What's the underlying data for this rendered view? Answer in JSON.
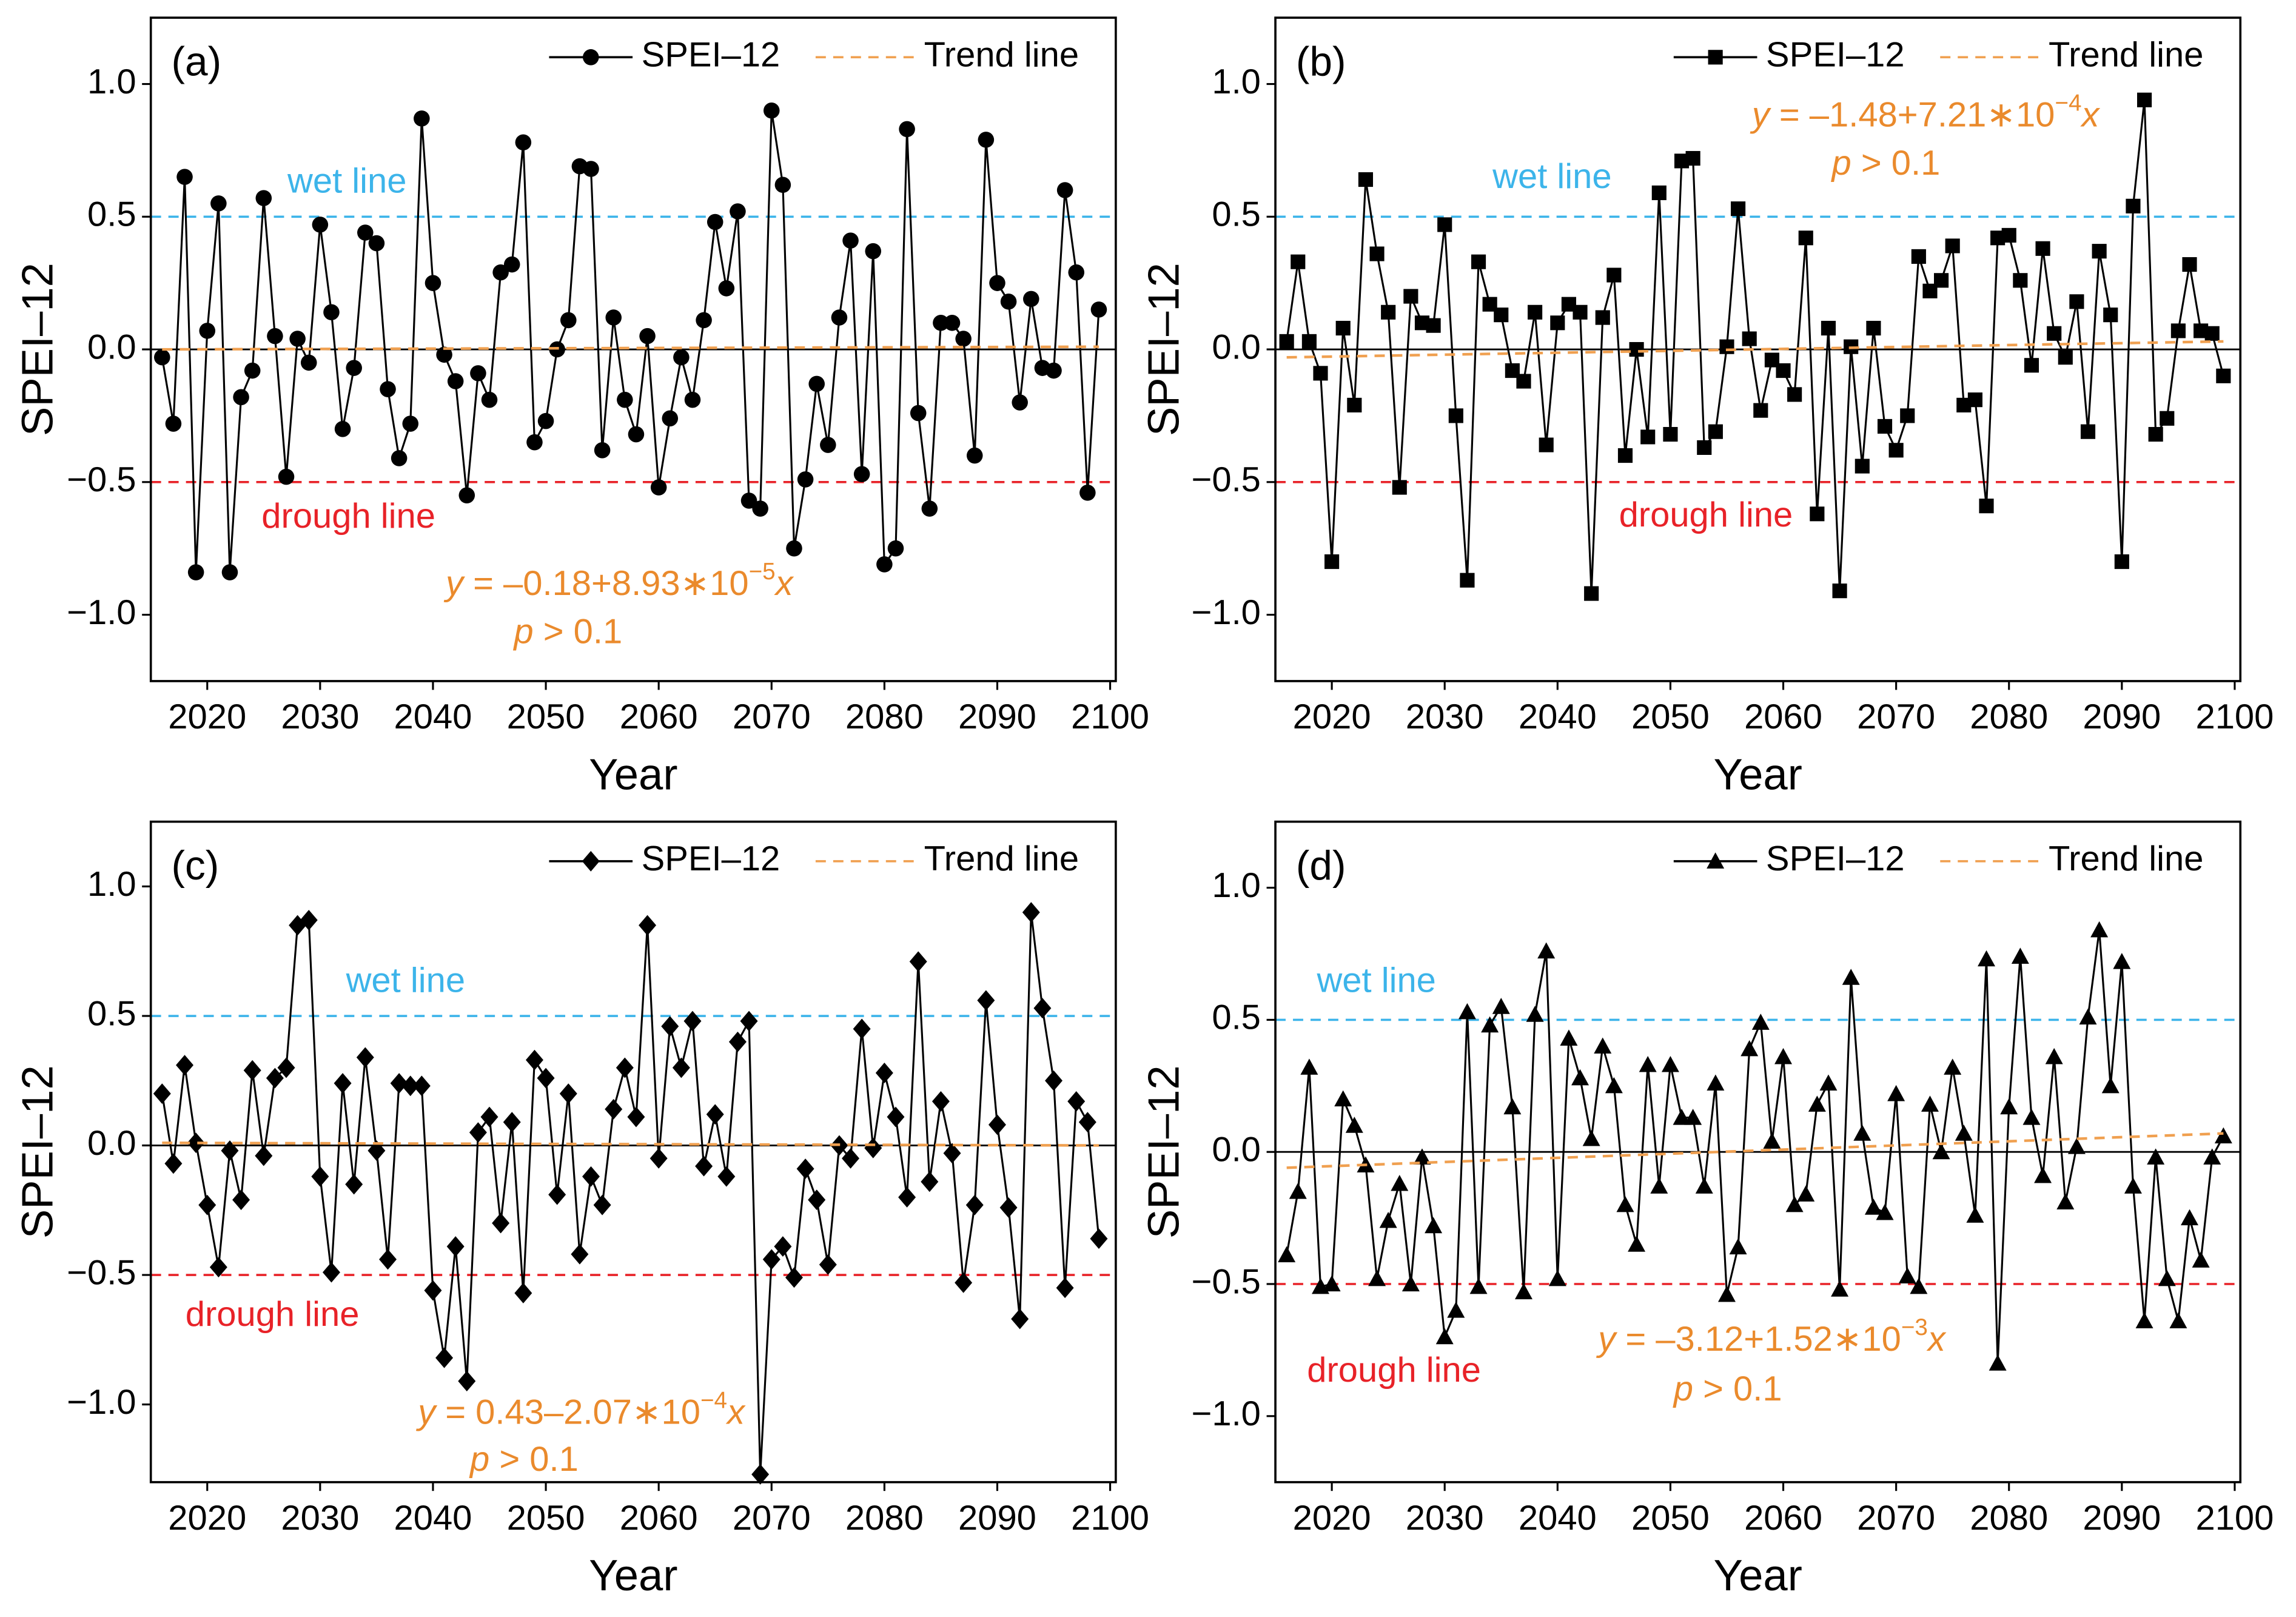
{
  "chart_data": [
    {
      "type": "line",
      "panel_label": "(a)",
      "xlabel": "Year",
      "ylabel": "SPEI–12",
      "xlim": [
        2015,
        2100.5
      ],
      "xticks": [
        2020,
        2030,
        2040,
        2050,
        2060,
        2070,
        2080,
        2090,
        2100
      ],
      "ylim": [
        -1.25,
        1.25
      ],
      "yticks": [
        {
          "value": -1,
          "label": "−1.0"
        },
        {
          "value": -0.5,
          "label": "−0.5"
        },
        {
          "value": 0,
          "label": "0.0"
        },
        {
          "value": 0.5,
          "label": "0.5"
        },
        {
          "value": 1,
          "label": "1.0"
        }
      ],
      "zero_line": true,
      "legend": "upper right",
      "x": [
        2016,
        2017,
        2018,
        2019,
        2020,
        2021,
        2022,
        2023,
        2024,
        2025,
        2026,
        2027,
        2028,
        2029,
        2030,
        2031,
        2032,
        2033,
        2034,
        2035,
        2036,
        2037,
        2038,
        2039,
        2040,
        2041,
        2042,
        2043,
        2044,
        2045,
        2046,
        2047,
        2048,
        2049,
        2050,
        2051,
        2052,
        2053,
        2054,
        2055,
        2056,
        2057,
        2058,
        2059,
        2060,
        2061,
        2062,
        2063,
        2064,
        2065,
        2066,
        2067,
        2068,
        2069,
        2070,
        2071,
        2072,
        2073,
        2074,
        2075,
        2076,
        2077,
        2078,
        2079,
        2080,
        2081,
        2082,
        2083,
        2084,
        2085,
        2086,
        2087,
        2088,
        2089,
        2090,
        2091,
        2092,
        2093,
        2094,
        2095,
        2096,
        2097,
        2098,
        2099
      ],
      "series": [
        {
          "name": "SPEI–12",
          "color": "#000000",
          "marker": "circle",
          "values": [
            -0.03,
            -0.28,
            0.65,
            -0.84,
            0.07,
            0.55,
            -0.84,
            -0.18,
            -0.08,
            0.57,
            0.05,
            -0.48,
            0.04,
            -0.05,
            0.47,
            0.14,
            -0.3,
            -0.07,
            0.44,
            0.4,
            -0.15,
            -0.41,
            -0.28,
            0.87,
            0.25,
            -0.02,
            -0.12,
            -0.55,
            -0.09,
            -0.19,
            0.29,
            0.32,
            0.78,
            -0.35,
            -0.27,
            0.0,
            0.11,
            0.69,
            0.68,
            -0.38,
            0.12,
            -0.19,
            -0.32,
            0.05,
            -0.52,
            -0.26,
            -0.03,
            -0.19,
            0.11,
            0.48,
            0.23,
            0.52,
            -0.57,
            -0.6,
            0.9,
            0.62,
            -0.75,
            -0.49,
            -0.13,
            -0.36,
            0.12,
            0.41,
            -0.47,
            0.37,
            -0.81,
            -0.75,
            0.83,
            -0.24,
            -0.6,
            0.1,
            0.1,
            0.04,
            -0.4,
            0.79,
            0.25,
            0.18,
            -0.2,
            0.19,
            -0.07,
            -0.08,
            0.6,
            0.29,
            -0.54,
            0.15
          ]
        },
        {
          "name": "Trend line",
          "color": "#f0a050",
          "dashed": true,
          "x": [
            2016,
            2099
          ],
          "values": [
            0.0,
            0.01
          ]
        }
      ],
      "reference_lines": [
        {
          "label": "wet line",
          "value": 0.5,
          "color": "#3cb4ea"
        },
        {
          "label": "drough line",
          "value": -0.5,
          "color": "#e82228"
        }
      ],
      "equation": [
        "y",
        " = –0.18+8.93∗10",
        "−5",
        "x"
      ],
      "significance": [
        "p",
        " > 0.1"
      ],
      "annotation_color": "#ea8a2c"
    },
    {
      "type": "line",
      "panel_label": "(b)",
      "xlabel": "Year",
      "ylabel": "SPEI–12",
      "xlim": [
        2015,
        2100.5
      ],
      "xticks": [
        2020,
        2030,
        2040,
        2050,
        2060,
        2070,
        2080,
        2090,
        2100
      ],
      "ylim": [
        -1.25,
        1.25
      ],
      "yticks": [
        {
          "value": -1,
          "label": "−1.0"
        },
        {
          "value": -0.5,
          "label": "−0.5"
        },
        {
          "value": 0,
          "label": "0.0"
        },
        {
          "value": 0.5,
          "label": "0.5"
        },
        {
          "value": 1,
          "label": "1.0"
        }
      ],
      "zero_line": true,
      "legend": "upper right",
      "x": [
        2016,
        2017,
        2018,
        2019,
        2020,
        2021,
        2022,
        2023,
        2024,
        2025,
        2026,
        2027,
        2028,
        2029,
        2030,
        2031,
        2032,
        2033,
        2034,
        2035,
        2036,
        2037,
        2038,
        2039,
        2040,
        2041,
        2042,
        2043,
        2044,
        2045,
        2046,
        2047,
        2048,
        2049,
        2050,
        2051,
        2052,
        2053,
        2054,
        2055,
        2056,
        2057,
        2058,
        2059,
        2060,
        2061,
        2062,
        2063,
        2064,
        2065,
        2066,
        2067,
        2068,
        2069,
        2070,
        2071,
        2072,
        2073,
        2074,
        2075,
        2076,
        2077,
        2078,
        2079,
        2080,
        2081,
        2082,
        2083,
        2084,
        2085,
        2086,
        2087,
        2088,
        2089,
        2090,
        2091,
        2092,
        2093,
        2094,
        2095,
        2096,
        2097,
        2098,
        2099
      ],
      "series": [
        {
          "name": "SPEI–12",
          "color": "#000000",
          "marker": "square",
          "values": [
            0.03,
            0.33,
            0.03,
            -0.09,
            -0.8,
            0.08,
            -0.21,
            0.64,
            0.36,
            0.14,
            -0.52,
            0.2,
            0.1,
            0.09,
            0.47,
            -0.25,
            -0.87,
            0.33,
            0.17,
            0.13,
            -0.08,
            -0.12,
            0.14,
            -0.36,
            0.1,
            0.17,
            0.14,
            -0.92,
            0.12,
            0.28,
            -0.4,
            0.0,
            -0.33,
            0.59,
            -0.32,
            0.71,
            0.72,
            -0.37,
            -0.31,
            0.01,
            0.53,
            0.04,
            -0.23,
            -0.04,
            -0.08,
            -0.17,
            0.42,
            -0.62,
            0.08,
            -0.91,
            0.01,
            -0.44,
            0.08,
            -0.29,
            -0.38,
            -0.25,
            0.35,
            0.22,
            0.26,
            0.39,
            -0.21,
            -0.19,
            -0.59,
            0.42,
            0.43,
            0.26,
            -0.06,
            0.38,
            0.06,
            -0.03,
            0.18,
            -0.31,
            0.37,
            0.13,
            -0.8,
            0.54,
            0.94,
            -0.32,
            -0.26,
            0.07,
            0.32,
            0.07,
            0.06,
            -0.1
          ]
        },
        {
          "name": "Trend line",
          "color": "#f0a050",
          "dashed": true,
          "x": [
            2016,
            2099
          ],
          "values": [
            -0.03,
            0.03
          ]
        }
      ],
      "reference_lines": [
        {
          "label": "wet line",
          "value": 0.5,
          "color": "#3cb4ea"
        },
        {
          "label": "drough line",
          "value": -0.5,
          "color": "#e82228"
        }
      ],
      "equation": [
        "y",
        " = –1.48+7.21∗10",
        "−4",
        "x"
      ],
      "significance": [
        "p",
        " > 0.1"
      ],
      "annotation_color": "#ea8a2c"
    },
    {
      "type": "line",
      "panel_label": "(c)",
      "xlabel": "Year",
      "ylabel": "SPEI–12",
      "xlim": [
        2015,
        2100.5
      ],
      "xticks": [
        2020,
        2030,
        2040,
        2050,
        2060,
        2070,
        2080,
        2090,
        2100
      ],
      "ylim": [
        -1.3,
        1.25
      ],
      "yticks": [
        {
          "value": -1,
          "label": "−1.0"
        },
        {
          "value": -0.5,
          "label": "−0.5"
        },
        {
          "value": 0,
          "label": "0.0"
        },
        {
          "value": 0.5,
          "label": "0.5"
        },
        {
          "value": 1,
          "label": "1.0"
        }
      ],
      "zero_line": true,
      "legend": "upper right",
      "x": [
        2016,
        2017,
        2018,
        2019,
        2020,
        2021,
        2022,
        2023,
        2024,
        2025,
        2026,
        2027,
        2028,
        2029,
        2030,
        2031,
        2032,
        2033,
        2034,
        2035,
        2036,
        2037,
        2038,
        2039,
        2040,
        2041,
        2042,
        2043,
        2044,
        2045,
        2046,
        2047,
        2048,
        2049,
        2050,
        2051,
        2052,
        2053,
        2054,
        2055,
        2056,
        2057,
        2058,
        2059,
        2060,
        2061,
        2062,
        2063,
        2064,
        2065,
        2066,
        2067,
        2068,
        2069,
        2070,
        2071,
        2072,
        2073,
        2074,
        2075,
        2076,
        2077,
        2078,
        2079,
        2080,
        2081,
        2082,
        2083,
        2084,
        2085,
        2086,
        2087,
        2088,
        2089,
        2090,
        2091,
        2092,
        2093,
        2094,
        2095,
        2096,
        2097,
        2098,
        2099
      ],
      "series": [
        {
          "name": "SPEI–12",
          "color": "#000000",
          "marker": "diamond",
          "values": [
            0.2,
            -0.07,
            0.31,
            0.01,
            -0.23,
            -0.47,
            -0.02,
            -0.21,
            0.29,
            -0.04,
            0.26,
            0.3,
            0.85,
            0.87,
            -0.12,
            -0.49,
            0.24,
            -0.15,
            0.34,
            -0.02,
            -0.44,
            0.24,
            0.23,
            0.23,
            -0.56,
            -0.82,
            -0.39,
            -0.91,
            0.05,
            0.11,
            -0.3,
            0.09,
            -0.57,
            0.33,
            0.26,
            -0.19,
            0.2,
            -0.42,
            -0.12,
            -0.23,
            0.14,
            0.3,
            0.11,
            0.85,
            -0.05,
            0.46,
            0.3,
            0.48,
            -0.08,
            0.12,
            -0.12,
            0.4,
            0.48,
            -1.27,
            -0.44,
            -0.39,
            -0.51,
            -0.09,
            -0.21,
            -0.46,
            0.0,
            -0.05,
            0.45,
            -0.01,
            0.28,
            0.11,
            -0.2,
            0.71,
            -0.14,
            0.17,
            -0.03,
            -0.53,
            -0.23,
            0.56,
            0.08,
            -0.24,
            -0.67,
            0.9,
            0.53,
            0.25,
            -0.55,
            0.17,
            0.09,
            -0.36
          ]
        },
        {
          "name": "Trend line",
          "color": "#f0a050",
          "dashed": true,
          "x": [
            2016,
            2099
          ],
          "values": [
            0.01,
            0.0
          ]
        }
      ],
      "reference_lines": [
        {
          "label": "wet line",
          "value": 0.5,
          "color": "#3cb4ea"
        },
        {
          "label": "drough line",
          "value": -0.5,
          "color": "#e82228"
        }
      ],
      "equation": [
        "y",
        " = 0.43–2.07∗10",
        "−4",
        "x"
      ],
      "significance": [
        "p",
        " > 0.1"
      ],
      "annotation_color": "#ea8a2c"
    },
    {
      "type": "line",
      "panel_label": "(d)",
      "xlabel": "Year",
      "ylabel": "SPEI–12",
      "xlim": [
        2015,
        2100.5
      ],
      "xticks": [
        2020,
        2030,
        2040,
        2050,
        2060,
        2070,
        2080,
        2090,
        2100
      ],
      "ylim": [
        -1.25,
        1.25
      ],
      "yticks": [
        {
          "value": -1,
          "label": "−1.0"
        },
        {
          "value": -0.5,
          "label": "−0.5"
        },
        {
          "value": 0,
          "label": "0.0"
        },
        {
          "value": 0.5,
          "label": "0.5"
        },
        {
          "value": 1,
          "label": "1.0"
        }
      ],
      "zero_line": true,
      "legend": "upper right",
      "x": [
        2016,
        2017,
        2018,
        2019,
        2020,
        2021,
        2022,
        2023,
        2024,
        2025,
        2026,
        2027,
        2028,
        2029,
        2030,
        2031,
        2032,
        2033,
        2034,
        2035,
        2036,
        2037,
        2038,
        2039,
        2040,
        2041,
        2042,
        2043,
        2044,
        2045,
        2046,
        2047,
        2048,
        2049,
        2050,
        2051,
        2052,
        2053,
        2054,
        2055,
        2056,
        2057,
        2058,
        2059,
        2060,
        2061,
        2062,
        2063,
        2064,
        2065,
        2066,
        2067,
        2068,
        2069,
        2070,
        2071,
        2072,
        2073,
        2074,
        2075,
        2076,
        2077,
        2078,
        2079,
        2080,
        2081,
        2082,
        2083,
        2084,
        2085,
        2086,
        2087,
        2088,
        2089,
        2090,
        2091,
        2092,
        2093,
        2094,
        2095,
        2096,
        2097,
        2098,
        2099
      ],
      "series": [
        {
          "name": "SPEI–12",
          "color": "#000000",
          "marker": "triangle",
          "values": [
            -0.39,
            -0.15,
            0.32,
            -0.51,
            -0.5,
            0.2,
            0.1,
            -0.05,
            -0.48,
            -0.26,
            -0.12,
            -0.5,
            -0.02,
            -0.28,
            -0.7,
            -0.6,
            0.53,
            -0.51,
            0.48,
            0.55,
            0.17,
            -0.53,
            0.52,
            0.76,
            -0.48,
            0.43,
            0.28,
            0.05,
            0.4,
            0.25,
            -0.2,
            -0.35,
            0.33,
            -0.13,
            0.33,
            0.13,
            0.13,
            -0.13,
            0.26,
            -0.54,
            -0.36,
            0.39,
            0.49,
            0.04,
            0.36,
            -0.2,
            -0.16,
            0.18,
            0.26,
            -0.52,
            0.66,
            0.07,
            -0.21,
            -0.23,
            0.22,
            -0.47,
            -0.51,
            0.18,
            0.0,
            0.32,
            0.07,
            -0.24,
            0.73,
            -0.8,
            0.17,
            0.74,
            0.13,
            -0.09,
            0.36,
            -0.19,
            0.02,
            0.51,
            0.84,
            0.25,
            0.72,
            -0.13,
            -0.64,
            -0.02,
            -0.48,
            -0.64,
            -0.25,
            -0.41,
            -0.02,
            0.06
          ]
        },
        {
          "name": "Trend line",
          "color": "#f0a050",
          "dashed": true,
          "x": [
            2016,
            2099
          ],
          "values": [
            -0.06,
            0.07
          ]
        }
      ],
      "reference_lines": [
        {
          "label": "wet line",
          "value": 0.5,
          "color": "#3cb4ea"
        },
        {
          "label": "drough line",
          "value": -0.5,
          "color": "#e82228"
        }
      ],
      "equation": [
        "y",
        " = –3.12+1.52∗10",
        "−3",
        "x"
      ],
      "significance": [
        "p",
        " > 0.1"
      ],
      "annotation_color": "#ea8a2c"
    }
  ]
}
